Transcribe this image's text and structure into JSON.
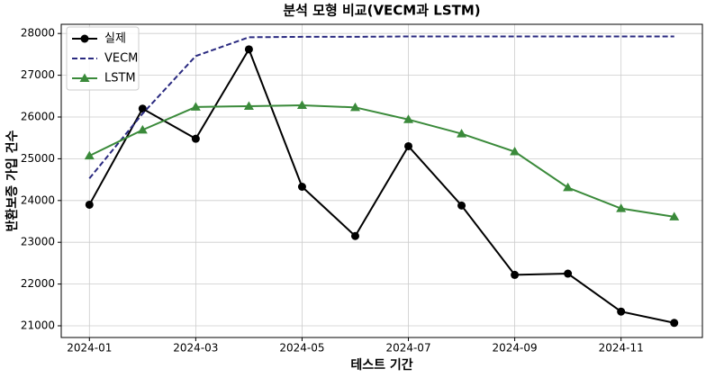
{
  "chart_data": {
    "type": "line",
    "title": "분석 모형 비교(VECM과 LSTM)",
    "x_label": "테스트 기간",
    "y_label": "반환보증 가입 건수",
    "x": [
      "2024-01",
      "2024-02",
      "2024-03",
      "2024-04",
      "2024-05",
      "2024-06",
      "2024-07",
      "2024-08",
      "2024-09",
      "2024-10",
      "2024-11",
      "2024-12"
    ],
    "xticks": [
      "2024-01",
      "2024-03",
      "2024-05",
      "2024-07",
      "2024-09",
      "2024-11"
    ],
    "ylim": [
      20720,
      28220
    ],
    "yticks": [
      21000,
      22000,
      23000,
      24000,
      25000,
      26000,
      27000,
      28000
    ],
    "grid": true,
    "legend": "upper left",
    "series": [
      {
        "name": "실제",
        "color": "#000000",
        "style": "solid",
        "marker": "circle",
        "values": [
          23900,
          26200,
          25480,
          27620,
          24330,
          23150,
          25300,
          23880,
          22220,
          22250,
          21340,
          21070
        ]
      },
      {
        "name": "VECM",
        "color": "#2a2a80",
        "style": "dashed",
        "marker": "none",
        "values": [
          24530,
          26080,
          27460,
          27910,
          27920,
          27920,
          27930,
          27930,
          27930,
          27930,
          27930,
          27930
        ]
      },
      {
        "name": "LSTM",
        "color": "#3a8a3a",
        "style": "solid",
        "marker": "triangle",
        "values": [
          25070,
          25690,
          26240,
          26260,
          26280,
          26230,
          25940,
          25600,
          25170,
          24310,
          23810,
          23610
        ]
      }
    ]
  }
}
